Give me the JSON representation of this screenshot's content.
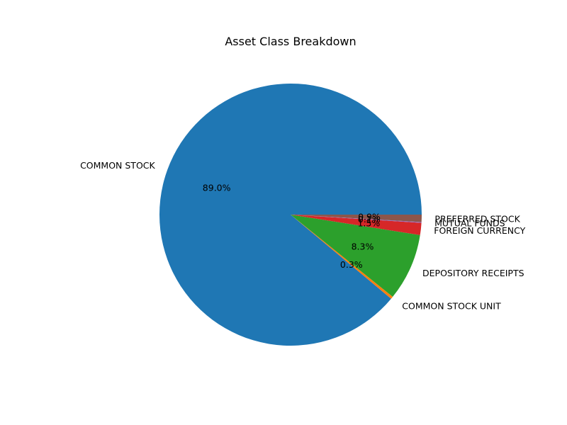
{
  "chart_data": {
    "type": "pie",
    "title": "Asset Class Breakdown",
    "start_angle_deg": 0,
    "direction": "counterclockwise",
    "slices": [
      {
        "label": "COMMON STOCK",
        "value": 89.0,
        "pct_label": "89.0%",
        "color": "#1f77b4"
      },
      {
        "label": "COMMON STOCK UNIT",
        "value": 0.3,
        "pct_label": "0.3%",
        "color": "#ff7f0e"
      },
      {
        "label": "DEPOSITORY RECEIPTS",
        "value": 8.3,
        "pct_label": "8.3%",
        "color": "#2ca02c"
      },
      {
        "label": "FOREIGN CURRENCY",
        "value": 1.5,
        "pct_label": "1.5%",
        "color": "#d62728"
      },
      {
        "label": "MUTUAL FUNDS",
        "value": 0.1,
        "pct_label": "0.1%",
        "color": "#9467bd"
      },
      {
        "label": "PREFERRED STOCK",
        "value": 0.9,
        "pct_label": "0.9%",
        "color": "#8c564b"
      }
    ]
  }
}
